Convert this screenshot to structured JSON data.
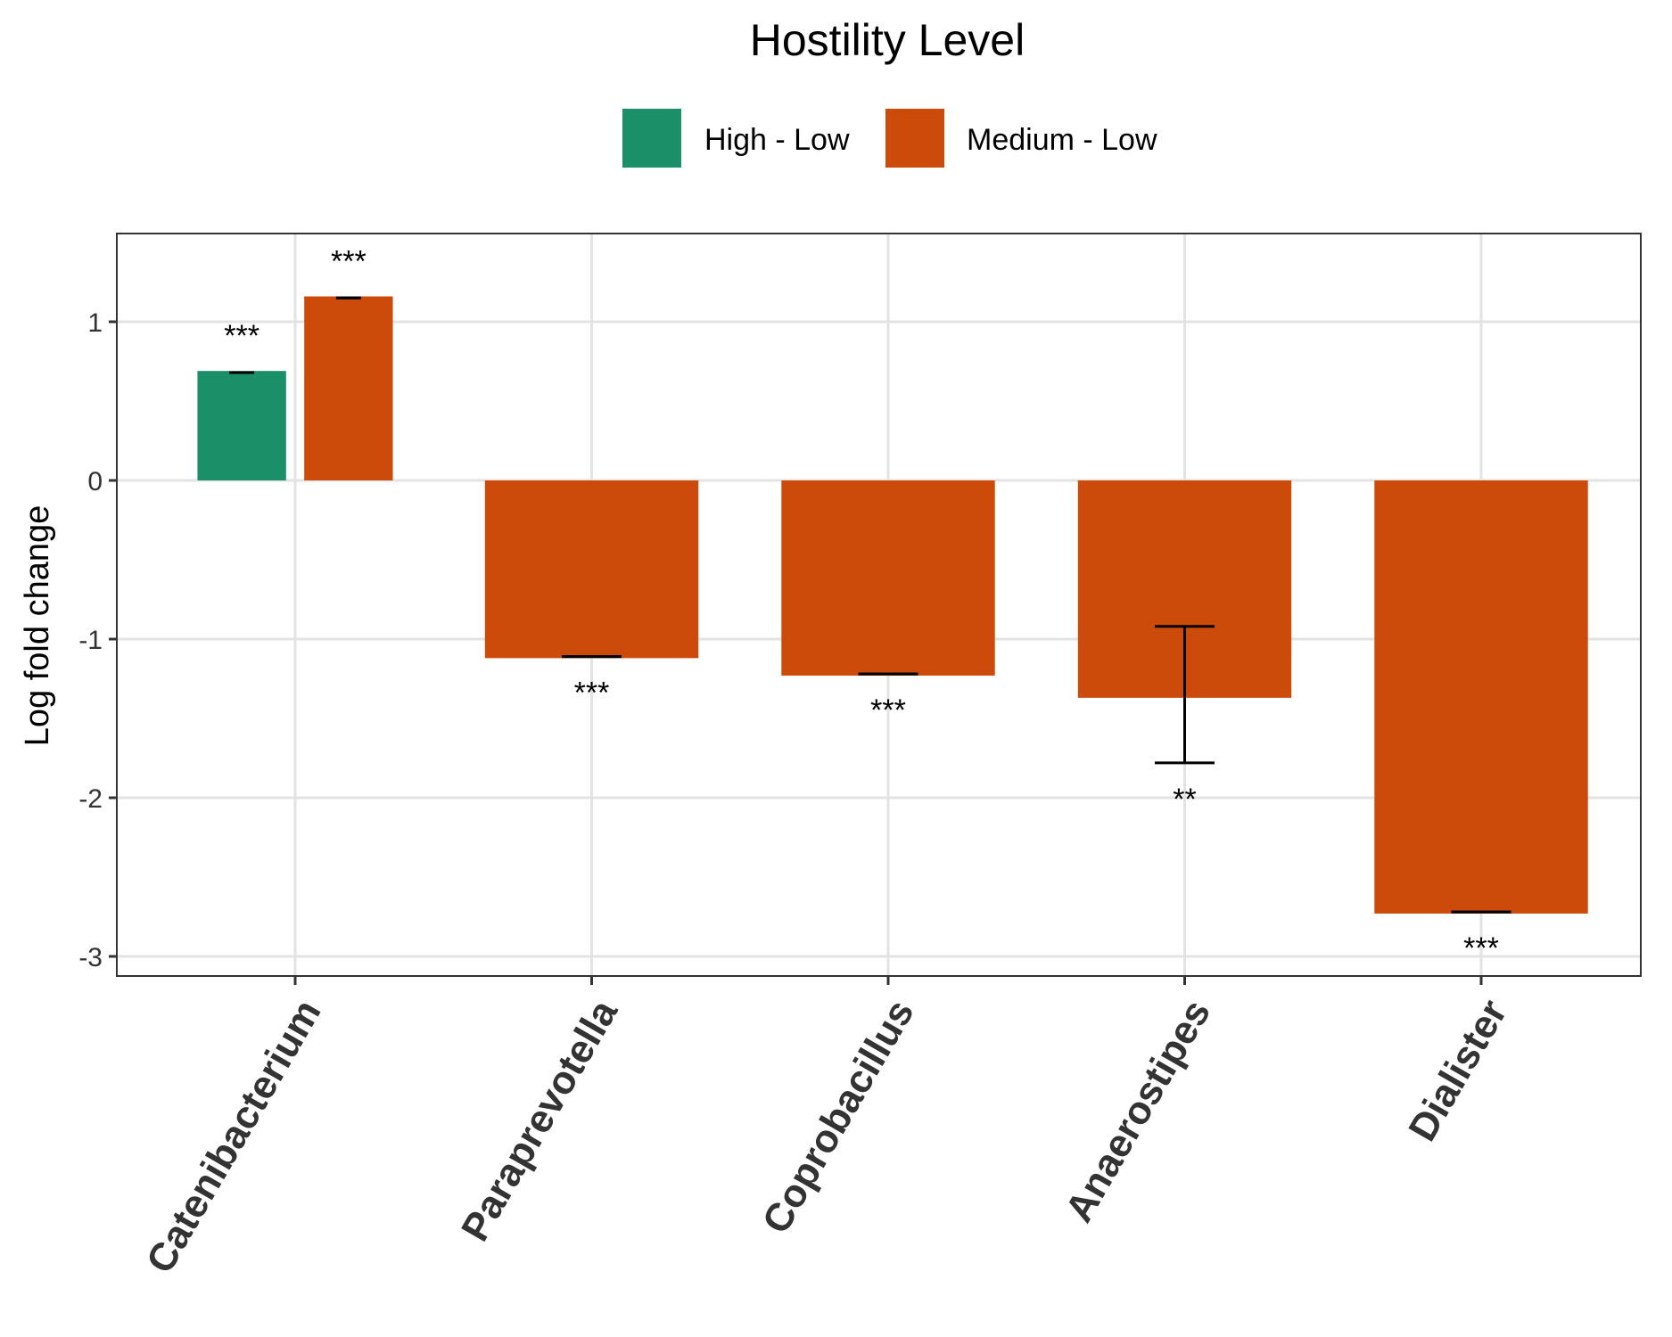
{
  "chart_data": {
    "type": "bar",
    "title": "",
    "xlabel": "",
    "ylabel": "Log fold change",
    "ylim": [
      -3.15,
      1.55
    ],
    "yticks": [
      1,
      0,
      -1,
      -2,
      -3
    ],
    "ytick_labels": [
      "1",
      "0",
      "-1",
      "-2",
      "-3"
    ],
    "categories": [
      "Catenibacterium",
      "Paraprevotella",
      "Coprobacillus",
      "Anaerostipes",
      "Dialister"
    ],
    "grid": true,
    "legend": {
      "title": "Hostility Level",
      "position": "top",
      "entries": [
        {
          "name": "High - Low",
          "color": "#1B9068"
        },
        {
          "name": "Medium - Low",
          "color": "#CC4A0A"
        }
      ]
    },
    "series": [
      {
        "name": "High - Low",
        "color": "#1B9068",
        "values": [
          0.69,
          null,
          null,
          null,
          null
        ],
        "error_low": [
          0.68,
          null,
          null,
          null,
          null
        ],
        "error_high": [
          0.68,
          null,
          null,
          null,
          null
        ],
        "significance": [
          "***",
          null,
          null,
          null,
          null
        ]
      },
      {
        "name": "Medium - Low",
        "color": "#CC4A0A",
        "values": [
          1.16,
          -1.12,
          -1.23,
          -1.37,
          -2.73
        ],
        "error_low": [
          1.15,
          -1.11,
          -1.22,
          -1.78,
          -2.72
        ],
        "error_high": [
          1.15,
          -1.11,
          -1.22,
          -0.92,
          -2.72
        ],
        "significance": [
          "***",
          "***",
          "***",
          "**",
          "***"
        ]
      }
    ]
  }
}
